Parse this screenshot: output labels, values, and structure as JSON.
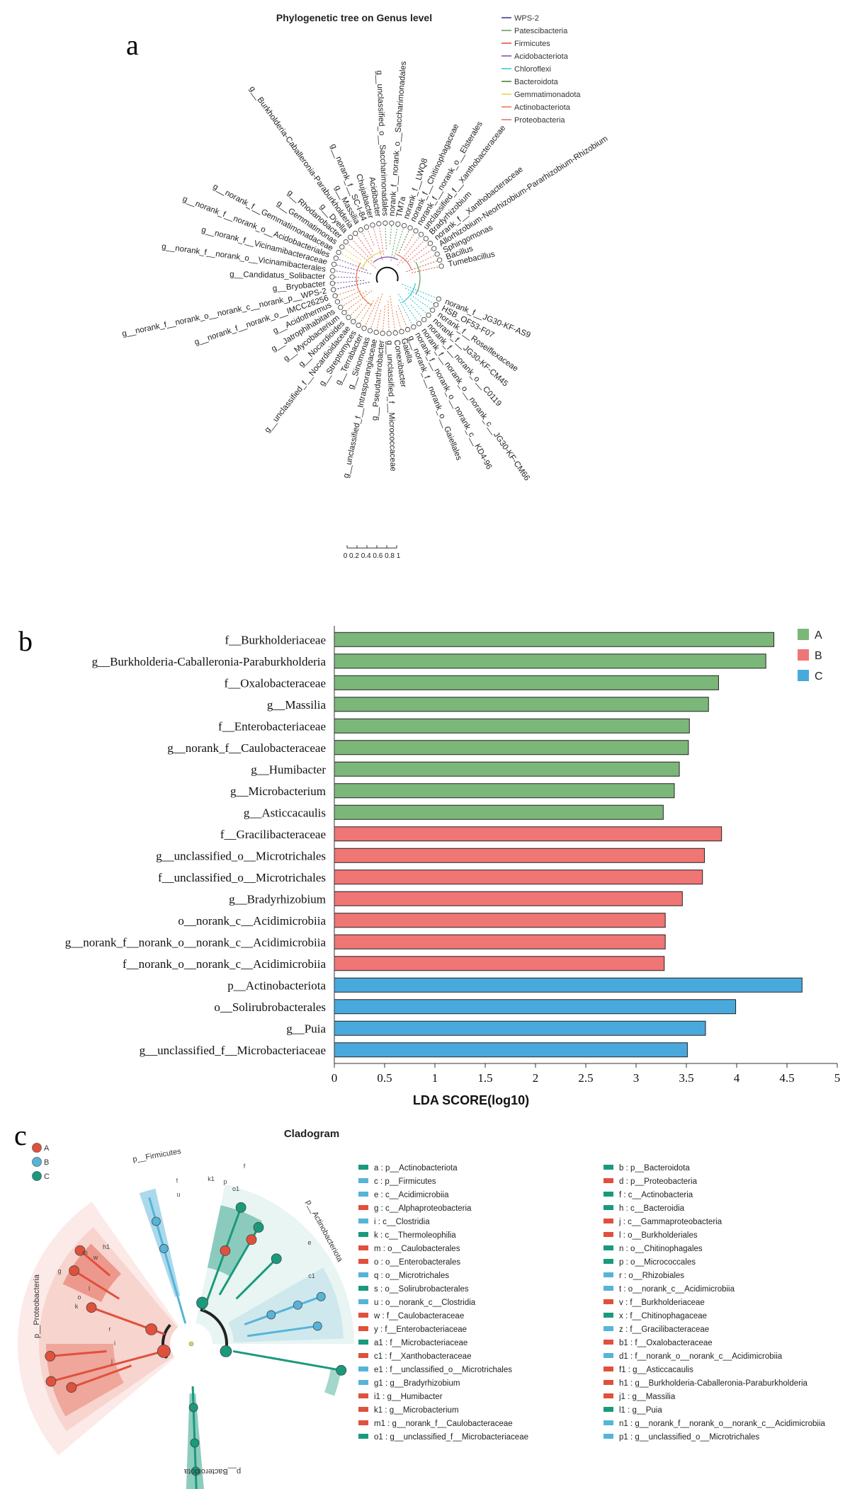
{
  "panels": {
    "a": "a",
    "b": "b",
    "c": "c"
  },
  "tree": {
    "title": "Phylogenetic tree on Genus level",
    "legend": [
      {
        "name": "WPS-2",
        "color": "#3b2a80"
      },
      {
        "name": "Patescibacteria",
        "color": "#5a9a5a"
      },
      {
        "name": "Firmicutes",
        "color": "#d84b3a"
      },
      {
        "name": "Acidobacteriota",
        "color": "#7b4aa8"
      },
      {
        "name": "Chloroflexi",
        "color": "#2cc6cf"
      },
      {
        "name": "Bacteroidota",
        "color": "#3d7d1f"
      },
      {
        "name": "Gemmatimonadota",
        "color": "#e3d24a"
      },
      {
        "name": "Actinobacteriota",
        "color": "#e8743a"
      },
      {
        "name": "Proteobacteria",
        "color": "#e46a6a"
      }
    ],
    "leaves": [
      {
        "label": "norank_f__JG30-KF-AS9",
        "color": "#2cc6cf"
      },
      {
        "label": "HSB_OF53-F07",
        "color": "#2cc6cf"
      },
      {
        "label": "norank_f__Roseiflexaceae",
        "color": "#2cc6cf"
      },
      {
        "label": "norank_f__JG30-KF-CM45",
        "color": "#2cc6cf"
      },
      {
        "label": "norank_f__norank_o__C0119",
        "color": "#2cc6cf"
      },
      {
        "label": "norank_f__norank_o__norank_c__JG30-KF-CM66",
        "color": "#2cc6cf"
      },
      {
        "label": "norank_f__norank_o__norank_c__KD4-96",
        "color": "#2cc6cf"
      },
      {
        "label": "g__norank_f__norank_o__Gaiellales",
        "color": "#e8743a"
      },
      {
        "label": "Gaiella",
        "color": "#e8743a"
      },
      {
        "label": "Conexibacter",
        "color": "#e8743a"
      },
      {
        "label": "g__unclassified_f__Micrococcaceae",
        "color": "#e8743a"
      },
      {
        "label": "g__Pseudarthrobacter",
        "color": "#e8743a"
      },
      {
        "label": "g__unclassified_f__Intrasporangiaceae",
        "color": "#e8743a"
      },
      {
        "label": "g__Sinomonas",
        "color": "#e8743a"
      },
      {
        "label": "g__Terrabacter",
        "color": "#e8743a"
      },
      {
        "label": "g__Streptomyces",
        "color": "#e8743a"
      },
      {
        "label": "g__unclassified_f__Nocardioidaceae",
        "color": "#e8743a"
      },
      {
        "label": "g__Nocardioides",
        "color": "#e8743a"
      },
      {
        "label": "g__Mycobacterium",
        "color": "#e8743a"
      },
      {
        "label": "g__Jatrophihabitans",
        "color": "#e8743a"
      },
      {
        "label": "g__Acidothermus",
        "color": "#e8743a"
      },
      {
        "label": "g__norank_f__norank_o__IMCC26256",
        "color": "#e8743a"
      },
      {
        "label": "g__norank_f__norank_o__norank_c__norank_p__WPS-2",
        "color": "#3b2a80"
      },
      {
        "label": "g__Bryobacter",
        "color": "#7b4aa8"
      },
      {
        "label": "g__Candidatus_Solibacter",
        "color": "#7b4aa8"
      },
      {
        "label": "g__norank_f__norank_o__Vicinamibacterales",
        "color": "#7b4aa8"
      },
      {
        "label": "g__norank_f__Vicinamibacteraceae",
        "color": "#7b4aa8"
      },
      {
        "label": "g__norank_f__norank_o__Acidobacteriales",
        "color": "#7b4aa8"
      },
      {
        "label": "g__norank_f__Gemmatimonadaceae",
        "color": "#e3d24a"
      },
      {
        "label": "g__Gemmatimonas",
        "color": "#e3d24a"
      },
      {
        "label": "g__Rhodanobacter",
        "color": "#e46a6a"
      },
      {
        "label": "g__Dyella",
        "color": "#e46a6a"
      },
      {
        "label": "g__Burkholderia-Caballeronia-Paraburkholderia",
        "color": "#e46a6a"
      },
      {
        "label": "g__Massilia",
        "color": "#e46a6a"
      },
      {
        "label": "g__norank_f__SC-I-84",
        "color": "#e46a6a"
      },
      {
        "label": "Chujaibacter",
        "color": "#e46a6a"
      },
      {
        "label": "Acidibacter",
        "color": "#e46a6a"
      },
      {
        "label": "g__unclassified_o__Saccharimonadales",
        "color": "#5a9a5a"
      },
      {
        "label": "norank_f__norank_o__Saccharimonadales",
        "color": "#5a9a5a"
      },
      {
        "label": "TM7a",
        "color": "#5a9a5a"
      },
      {
        "label": "norank_f__LWQ8",
        "color": "#5a9a5a"
      },
      {
        "label": "norank_f__Chitinophagaceae",
        "color": "#3d7d1f"
      },
      {
        "label": "norank_f__norank_o__Elsterales",
        "color": "#e46a6a"
      },
      {
        "label": "unclassified_f__Xanthobacteraceae",
        "color": "#e46a6a"
      },
      {
        "label": "Bradyrhizobium",
        "color": "#e46a6a"
      },
      {
        "label": "norank_f__Xanthobacteraceae",
        "color": "#e46a6a"
      },
      {
        "label": "Allorhizobium-Neorhizobium-Pararhizobium-Rhizobium",
        "color": "#e46a6a"
      },
      {
        "label": "Sphingomonas",
        "color": "#e46a6a"
      },
      {
        "label": "Bacillus",
        "color": "#d84b3a"
      },
      {
        "label": "Tumebacillus",
        "color": "#d84b3a"
      }
    ],
    "scale_label": "0 0.2 0.4 0.6 0.8 1"
  },
  "chart_data": {
    "type": "bar",
    "orientation": "horizontal",
    "xlabel": "LDA SCORE(log10)",
    "xlim": [
      0,
      5
    ],
    "xticks": [
      "0",
      "0.5",
      "1",
      "1.5",
      "2",
      "2.5",
      "3",
      "3.5",
      "4",
      "4.5",
      "5"
    ],
    "legend": [
      {
        "name": "A",
        "color": "#7cb77a"
      },
      {
        "name": "B",
        "color": "#f07575"
      },
      {
        "name": "C",
        "color": "#4aa9dc"
      }
    ],
    "bars": [
      {
        "label": "f__Burkholderiaceae",
        "value": 4.37,
        "group": "A"
      },
      {
        "label": "g__Burkholderia-Caballeronia-Paraburkholderia",
        "value": 4.29,
        "group": "A"
      },
      {
        "label": "f__Oxalobacteraceae",
        "value": 3.82,
        "group": "A"
      },
      {
        "label": "g__Massilia",
        "value": 3.72,
        "group": "A"
      },
      {
        "label": "f__Enterobacteriaceae",
        "value": 3.53,
        "group": "A"
      },
      {
        "label": "g__norank_f__Caulobacteraceae",
        "value": 3.52,
        "group": "A"
      },
      {
        "label": "g__Humibacter",
        "value": 3.43,
        "group": "A"
      },
      {
        "label": "g__Microbacterium",
        "value": 3.38,
        "group": "A"
      },
      {
        "label": "g__Asticcacaulis",
        "value": 3.27,
        "group": "A"
      },
      {
        "label": "f__Gracilibacteraceae",
        "value": 3.85,
        "group": "B"
      },
      {
        "label": "g__unclassified_o__Microtrichales",
        "value": 3.68,
        "group": "B"
      },
      {
        "label": "f__unclassified_o__Microtrichales",
        "value": 3.66,
        "group": "B"
      },
      {
        "label": "g__Bradyrhizobium",
        "value": 3.46,
        "group": "B"
      },
      {
        "label": "o__norank_c__Acidimicrobiia",
        "value": 3.29,
        "group": "B"
      },
      {
        "label": "g__norank_f__norank_o__norank_c__Acidimicrobiia",
        "value": 3.29,
        "group": "B"
      },
      {
        "label": "f__norank_o__norank_c__Acidimicrobiia",
        "value": 3.28,
        "group": "B"
      },
      {
        "label": "p__Actinobacteriota",
        "value": 4.65,
        "group": "C"
      },
      {
        "label": "o__Solirubrobacterales",
        "value": 3.99,
        "group": "C"
      },
      {
        "label": "g__Puia",
        "value": 3.69,
        "group": "C"
      },
      {
        "label": "g__unclassified_f__Microbacteriaceae",
        "value": 3.51,
        "group": "C"
      }
    ]
  },
  "cladogram": {
    "title": "Cladogram",
    "groups": [
      {
        "name": "A",
        "color": "#e0503c"
      },
      {
        "name": "B",
        "color": "#56b4d9"
      },
      {
        "name": "C",
        "color": "#1a9a7c"
      }
    ],
    "phylum_labels": [
      "p__Firmicutes",
      "p__Actinobacteriota",
      "p__Proteobacteria",
      "p__Bacteroidota"
    ],
    "inner_labels": [
      "t",
      "u",
      "k1",
      "p",
      "f",
      "o1",
      "e",
      "c1",
      "g",
      "m",
      "w",
      "h1",
      "o",
      "k",
      "l",
      "r",
      "i",
      "j"
    ],
    "legend_left": [
      {
        "key": "a : p__Actinobacteriota",
        "color": "#1a9a7c"
      },
      {
        "key": "c : p__Firmicutes",
        "color": "#56b4d9"
      },
      {
        "key": "e : c__Acidimicrobiia",
        "color": "#56b4d9"
      },
      {
        "key": "g : c__Alphaproteobacteria",
        "color": "#e0503c"
      },
      {
        "key": "i : c__Clostridia",
        "color": "#56b4d9"
      },
      {
        "key": "k : c__Thermoleophilia",
        "color": "#1a9a7c"
      },
      {
        "key": "m : o__Caulobacterales",
        "color": "#e0503c"
      },
      {
        "key": "o : o__Enterobacterales",
        "color": "#e0503c"
      },
      {
        "key": "q : o__Microtrichales",
        "color": "#56b4d9"
      },
      {
        "key": "s : o__Solirubrobacterales",
        "color": "#1a9a7c"
      },
      {
        "key": "u : o__norank_c__Clostridia",
        "color": "#56b4d9"
      },
      {
        "key": "w : f__Caulobacteraceae",
        "color": "#e0503c"
      },
      {
        "key": "y : f__Enterobacteriaceae",
        "color": "#e0503c"
      },
      {
        "key": "a1 : f__Microbacteriaceae",
        "color": "#1a9a7c"
      },
      {
        "key": "c1 : f__Xanthobacteraceae",
        "color": "#e0503c"
      },
      {
        "key": "e1 : f__unclassified_o__Microtrichales",
        "color": "#56b4d9"
      },
      {
        "key": "g1 : g__Bradyrhizobium",
        "color": "#56b4d9"
      },
      {
        "key": "i1 : g__Humibacter",
        "color": "#e0503c"
      },
      {
        "key": "k1 : g__Microbacterium",
        "color": "#e0503c"
      },
      {
        "key": "m1 : g__norank_f__Caulobacteraceae",
        "color": "#e0503c"
      },
      {
        "key": "o1 : g__unclassified_f__Microbacteriaceae",
        "color": "#1a9a7c"
      }
    ],
    "legend_right": [
      {
        "key": "b : p__Bacteroidota",
        "color": "#1a9a7c"
      },
      {
        "key": "d : p__Proteobacteria",
        "color": "#e0503c"
      },
      {
        "key": "f : c__Actinobacteria",
        "color": "#1a9a7c"
      },
      {
        "key": "h : c__Bacteroidia",
        "color": "#1a9a7c"
      },
      {
        "key": "j : c__Gammaproteobacteria",
        "color": "#e0503c"
      },
      {
        "key": "l : o__Burkholderiales",
        "color": "#e0503c"
      },
      {
        "key": "n : o__Chitinophagales",
        "color": "#1a9a7c"
      },
      {
        "key": "p : o__Micrococcales",
        "color": "#1a9a7c"
      },
      {
        "key": "r : o__Rhizobiales",
        "color": "#56b4d9"
      },
      {
        "key": "t : o__norank_c__Acidimicrobiia",
        "color": "#56b4d9"
      },
      {
        "key": "v : f__Burkholderiaceae",
        "color": "#e0503c"
      },
      {
        "key": "x : f__Chitinophagaceae",
        "color": "#1a9a7c"
      },
      {
        "key": "z : f__Gracilibacteraceae",
        "color": "#56b4d9"
      },
      {
        "key": "b1 : f__Oxalobacteraceae",
        "color": "#e0503c"
      },
      {
        "key": "d1 : f__norank_o__norank_c__Acidimicrobiia",
        "color": "#56b4d9"
      },
      {
        "key": "f1 : g__Asticcacaulis",
        "color": "#e0503c"
      },
      {
        "key": "h1 : g__Burkholderia-Caballeronia-Paraburkholderia",
        "color": "#e0503c"
      },
      {
        "key": "j1 : g__Massilia",
        "color": "#e0503c"
      },
      {
        "key": "l1 : g__Puia",
        "color": "#1a9a7c"
      },
      {
        "key": "n1 : g__norank_f__norank_o__norank_c__Acidimicrobiia",
        "color": "#56b4d9"
      },
      {
        "key": "p1 : g__unclassified_o__Microtrichales",
        "color": "#56b4d9"
      }
    ]
  }
}
